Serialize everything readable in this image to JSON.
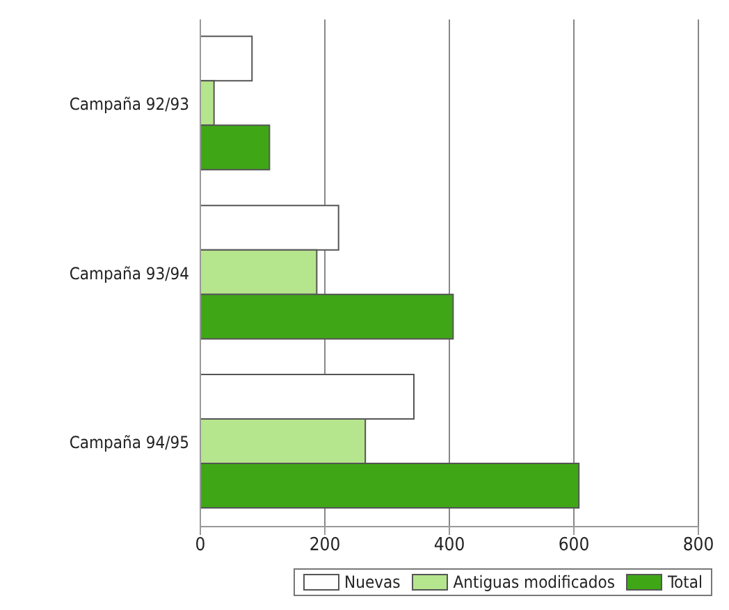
{
  "chart_data": {
    "type": "bar",
    "orientation": "horizontal",
    "categories": [
      "Campaña 92/93",
      "Campaña 93/94",
      "Campaña 94/95"
    ],
    "series": [
      {
        "name": "Nuevas",
        "color": "#ffffff",
        "values": [
          83,
          222,
          343
        ]
      },
      {
        "name": "Antiguas modificados",
        "color": "#b5e58c",
        "values": [
          22,
          187,
          265
        ]
      },
      {
        "name": "Total",
        "color": "#3fa716",
        "values": [
          111,
          406,
          608
        ]
      }
    ],
    "xlim": [
      0,
      800
    ],
    "xticks": [
      0,
      200,
      400,
      600,
      800
    ],
    "grid": "x",
    "legend": "bottom"
  }
}
